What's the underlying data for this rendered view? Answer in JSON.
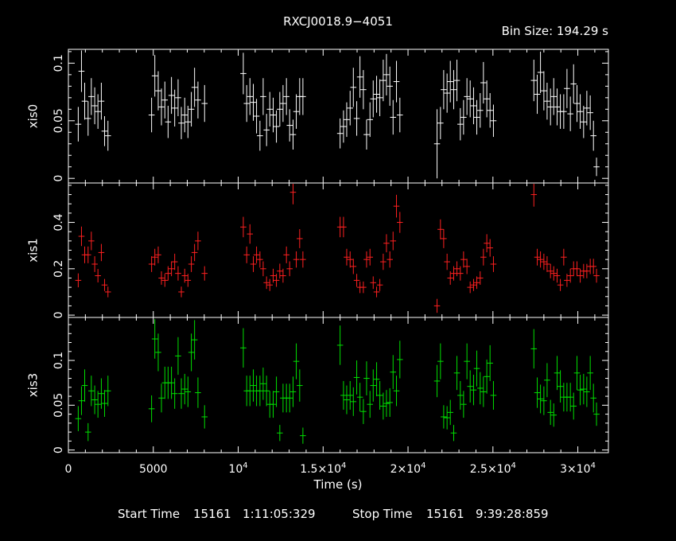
{
  "title": "RXCJ0018.9−4051",
  "bin_size": "Bin Size: 194.29 s",
  "xlabel": "Time (s)",
  "footer": {
    "start_label": "Start Time",
    "start_value": "15161   1:11:05:329",
    "stop_label": "Stop Time",
    "stop_value": "15161   9:39:28:859"
  },
  "colors": {
    "xis0": "#ffffff",
    "xis1": "#ff2020",
    "xis3": "#00e000",
    "frame": "#ffffff"
  },
  "chart_data": [
    {
      "type": "scatter",
      "panel": "xis0",
      "ylabel": "xis0",
      "xlim": [
        0,
        31800
      ],
      "ylim": [
        -0.004,
        0.112
      ],
      "yticks": [
        0,
        0.05,
        0.1
      ],
      "ytick_labels": [
        "0",
        "0.05",
        "0.1"
      ],
      "series": [
        {
          "color": "#ffffff",
          "x": [
            580,
            770,
            960,
            1160,
            1350,
            1550,
            1740,
            1940,
            2130,
            2330,
            4900,
            5090,
            5290,
            5480,
            5680,
            5870,
            6070,
            6260,
            6460,
            6650,
            6850,
            7040,
            7240,
            7430,
            7630,
            8020,
            10300,
            10500,
            10690,
            10890,
            11080,
            11280,
            11470,
            11670,
            11860,
            12060,
            12250,
            12450,
            12640,
            12840,
            13030,
            13230,
            13420,
            13620,
            13810,
            16000,
            16200,
            16390,
            16590,
            16780,
            16980,
            17170,
            17370,
            17560,
            17760,
            17950,
            18150,
            18340,
            18540,
            18730,
            18930,
            19120,
            19320,
            19520,
            21710,
            21910,
            22100,
            22300,
            22490,
            22690,
            22880,
            23080,
            23270,
            23470,
            23660,
            23860,
            24050,
            24250,
            24440,
            24640,
            24830,
            25030,
            27410,
            27610,
            27800,
            28000,
            28190,
            28390,
            28580,
            28780,
            28970,
            29170,
            29360,
            29560,
            29750,
            29950,
            30140,
            30340,
            30530,
            30730,
            30920,
            31100
          ],
          "y": [
            0.047,
            0.093,
            0.067,
            0.052,
            0.071,
            0.063,
            0.058,
            0.067,
            0.041,
            0.037,
            0.055,
            0.089,
            0.076,
            0.062,
            0.068,
            0.049,
            0.072,
            0.061,
            0.07,
            0.048,
            0.055,
            0.049,
            0.06,
            0.079,
            0.068,
            0.065,
            0.091,
            0.065,
            0.071,
            0.066,
            0.054,
            0.037,
            0.071,
            0.042,
            0.06,
            0.055,
            0.045,
            0.06,
            0.065,
            0.071,
            0.046,
            0.038,
            0.058,
            0.071,
            0.071,
            0.039,
            0.045,
            0.051,
            0.061,
            0.079,
            0.052,
            0.088,
            0.077,
            0.038,
            0.051,
            0.069,
            0.073,
            0.07,
            0.085,
            0.09,
            0.08,
            0.053,
            0.084,
            0.055,
            0.03,
            0.048,
            0.077,
            0.074,
            0.084,
            0.077,
            0.085,
            0.047,
            0.053,
            0.071,
            0.069,
            0.063,
            0.053,
            0.059,
            0.083,
            0.069,
            0.059,
            0.05,
            0.085,
            0.073,
            0.092,
            0.076,
            0.067,
            0.062,
            0.071,
            0.062,
            0.058,
            0.058,
            0.078,
            0.056,
            0.082,
            0.065,
            0.058,
            0.049,
            0.061,
            0.057,
            0.037,
            0.01
          ],
          "yerr": [
            0.015,
            0.018,
            0.016,
            0.015,
            0.016,
            0.016,
            0.015,
            0.016,
            0.013,
            0.013,
            0.015,
            0.018,
            0.017,
            0.016,
            0.016,
            0.014,
            0.016,
            0.016,
            0.016,
            0.014,
            0.015,
            0.014,
            0.015,
            0.017,
            0.016,
            0.016,
            0.018,
            0.016,
            0.016,
            0.016,
            0.015,
            0.013,
            0.016,
            0.014,
            0.015,
            0.015,
            0.014,
            0.015,
            0.016,
            0.016,
            0.014,
            0.013,
            0.015,
            0.016,
            0.016,
            0.013,
            0.014,
            0.015,
            0.015,
            0.017,
            0.015,
            0.018,
            0.017,
            0.013,
            0.015,
            0.016,
            0.016,
            0.016,
            0.018,
            0.018,
            0.017,
            0.015,
            0.018,
            0.015,
            0.03,
            0.014,
            0.017,
            0.017,
            0.018,
            0.017,
            0.018,
            0.014,
            0.015,
            0.016,
            0.016,
            0.016,
            0.015,
            0.015,
            0.018,
            0.016,
            0.015,
            0.014,
            0.018,
            0.017,
            0.018,
            0.017,
            0.016,
            0.016,
            0.016,
            0.016,
            0.015,
            0.015,
            0.017,
            0.015,
            0.017,
            0.016,
            0.015,
            0.014,
            0.015,
            0.015,
            0.013,
            0.008
          ]
        }
      ]
    },
    {
      "type": "scatter",
      "panel": "xis1",
      "ylabel": "xis1",
      "xlim": [
        0,
        31800
      ],
      "ylim": [
        -0.01,
        0.57
      ],
      "yticks": [
        0,
        0.2,
        0.4
      ],
      "ytick_labels": [
        "0",
        "0.2",
        "0.4"
      ],
      "series": [
        {
          "color": "#ff2020",
          "x": [
            580,
            770,
            960,
            1160,
            1350,
            1550,
            1740,
            1940,
            2130,
            2330,
            4900,
            5090,
            5290,
            5480,
            5680,
            5870,
            6070,
            6260,
            6460,
            6650,
            6850,
            7040,
            7240,
            7430,
            7630,
            8020,
            10300,
            10500,
            10690,
            10890,
            11080,
            11280,
            11470,
            11670,
            11860,
            12060,
            12250,
            12450,
            12640,
            12840,
            13030,
            13230,
            13420,
            13620,
            13810,
            16000,
            16200,
            16390,
            16590,
            16780,
            16980,
            17170,
            17370,
            17560,
            17760,
            17950,
            18150,
            18340,
            18540,
            18730,
            18930,
            19120,
            19320,
            19520,
            21710,
            21910,
            22100,
            22300,
            22490,
            22690,
            22880,
            23080,
            23270,
            23470,
            23660,
            23860,
            24050,
            24250,
            24440,
            24640,
            24830,
            25030,
            27410,
            27610,
            27800,
            28000,
            28190,
            28390,
            28580,
            28780,
            28970,
            29170,
            29360,
            29560,
            29750,
            29950,
            30140,
            30340,
            30530,
            30730,
            30920,
            31100
          ],
          "y": [
            0.15,
            0.34,
            0.26,
            0.26,
            0.32,
            0.22,
            0.17,
            0.27,
            0.13,
            0.1,
            0.22,
            0.25,
            0.26,
            0.16,
            0.15,
            0.18,
            0.2,
            0.23,
            0.18,
            0.1,
            0.17,
            0.15,
            0.22,
            0.27,
            0.32,
            0.18,
            0.38,
            0.26,
            0.35,
            0.22,
            0.26,
            0.24,
            0.2,
            0.14,
            0.13,
            0.17,
            0.15,
            0.19,
            0.17,
            0.26,
            0.2,
            0.53,
            0.24,
            0.33,
            0.24,
            0.38,
            0.38,
            0.25,
            0.24,
            0.21,
            0.15,
            0.12,
            0.12,
            0.24,
            0.25,
            0.14,
            0.1,
            0.13,
            0.23,
            0.31,
            0.24,
            0.32,
            0.47,
            0.4,
            0.04,
            0.37,
            0.33,
            0.23,
            0.16,
            0.18,
            0.2,
            0.18,
            0.24,
            0.21,
            0.12,
            0.13,
            0.14,
            0.16,
            0.25,
            0.31,
            0.29,
            0.22,
            0.52,
            0.25,
            0.24,
            0.23,
            0.22,
            0.19,
            0.18,
            0.17,
            0.13,
            0.25,
            0.15,
            0.17,
            0.2,
            0.2,
            0.17,
            0.19,
            0.19,
            0.21,
            0.21,
            0.17
          ],
          "yerr": [
            0.03,
            0.042,
            0.036,
            0.036,
            0.04,
            0.034,
            0.029,
            0.037,
            0.026,
            0.023,
            0.034,
            0.036,
            0.036,
            0.029,
            0.028,
            0.031,
            0.032,
            0.035,
            0.031,
            0.023,
            0.03,
            0.028,
            0.034,
            0.037,
            0.04,
            0.031,
            0.044,
            0.036,
            0.042,
            0.034,
            0.036,
            0.035,
            0.032,
            0.027,
            0.026,
            0.03,
            0.028,
            0.032,
            0.03,
            0.036,
            0.032,
            0.052,
            0.035,
            0.041,
            0.035,
            0.044,
            0.044,
            0.036,
            0.035,
            0.033,
            0.028,
            0.025,
            0.025,
            0.035,
            0.036,
            0.027,
            0.023,
            0.026,
            0.035,
            0.039,
            0.035,
            0.04,
            0.049,
            0.045,
            0.03,
            0.043,
            0.041,
            0.035,
            0.029,
            0.031,
            0.032,
            0.031,
            0.035,
            0.033,
            0.025,
            0.026,
            0.027,
            0.029,
            0.036,
            0.039,
            0.038,
            0.034,
            0.052,
            0.036,
            0.035,
            0.035,
            0.034,
            0.031,
            0.031,
            0.03,
            0.026,
            0.036,
            0.028,
            0.03,
            0.032,
            0.032,
            0.03,
            0.031,
            0.031,
            0.033,
            0.033,
            0.03
          ]
        }
      ]
    },
    {
      "type": "scatter",
      "panel": "xis3",
      "ylabel": "xis3",
      "xlim": [
        0,
        31800
      ],
      "ylim": [
        -0.003,
        0.148
      ],
      "yticks": [
        0,
        0.05,
        0.1
      ],
      "ytick_labels": [
        "0",
        "0.05",
        "0.1"
      ],
      "series": [
        {
          "color": "#00e000",
          "x": [
            580,
            770,
            960,
            1160,
            1350,
            1550,
            1740,
            1940,
            2130,
            2330,
            4900,
            5090,
            5290,
            5480,
            5680,
            5870,
            6070,
            6260,
            6460,
            6650,
            6850,
            7040,
            7240,
            7430,
            7630,
            8020,
            10300,
            10500,
            10690,
            10890,
            11080,
            11280,
            11470,
            11670,
            11860,
            12060,
            12250,
            12450,
            12640,
            12840,
            13030,
            13230,
            13420,
            13620,
            13810,
            16000,
            16200,
            16390,
            16590,
            16780,
            16980,
            17170,
            17370,
            17560,
            17760,
            17950,
            18150,
            18340,
            18540,
            18730,
            18930,
            19120,
            19320,
            19520,
            21710,
            21910,
            22100,
            22300,
            22490,
            22690,
            22880,
            23080,
            23270,
            23470,
            23660,
            23860,
            24050,
            24250,
            24440,
            24640,
            24830,
            25030,
            27410,
            27610,
            27800,
            28000,
            28190,
            28390,
            28580,
            28780,
            28970,
            29170,
            29360,
            29560,
            29750,
            29950,
            30140,
            30340,
            30530,
            30730,
            30920,
            31100
          ],
          "y": [
            0.035,
            0.055,
            0.072,
            0.02,
            0.066,
            0.056,
            0.051,
            0.063,
            0.052,
            0.066,
            0.046,
            0.124,
            0.109,
            0.058,
            0.075,
            0.075,
            0.075,
            0.063,
            0.105,
            0.063,
            0.068,
            0.065,
            0.109,
            0.123,
            0.064,
            0.037,
            0.114,
            0.066,
            0.066,
            0.072,
            0.066,
            0.066,
            0.074,
            0.066,
            0.051,
            0.051,
            0.065,
            0.019,
            0.058,
            0.058,
            0.058,
            0.065,
            0.099,
            0.072,
            0.016,
            0.117,
            0.061,
            0.056,
            0.061,
            0.054,
            0.081,
            0.059,
            0.043,
            0.08,
            0.051,
            0.072,
            0.079,
            0.061,
            0.049,
            0.052,
            0.053,
            0.087,
            0.066,
            0.101,
            0.077,
            0.099,
            0.037,
            0.036,
            0.042,
            0.019,
            0.086,
            0.061,
            0.051,
            0.099,
            0.071,
            0.067,
            0.091,
            0.069,
            0.065,
            0.082,
            0.097,
            0.061,
            0.113,
            0.064,
            0.057,
            0.055,
            0.078,
            0.042,
            0.039,
            0.086,
            0.071,
            0.059,
            0.059,
            0.059,
            0.049,
            0.086,
            0.067,
            0.068,
            0.065,
            0.086,
            0.058,
            0.04
          ],
          "yerr": [
            0.014,
            0.016,
            0.018,
            0.01,
            0.017,
            0.016,
            0.015,
            0.017,
            0.015,
            0.017,
            0.015,
            0.022,
            0.021,
            0.016,
            0.018,
            0.018,
            0.018,
            0.017,
            0.021,
            0.017,
            0.017,
            0.017,
            0.021,
            0.022,
            0.017,
            0.013,
            0.022,
            0.017,
            0.017,
            0.018,
            0.017,
            0.017,
            0.018,
            0.017,
            0.015,
            0.015,
            0.017,
            0.009,
            0.016,
            0.016,
            0.016,
            0.017,
            0.02,
            0.018,
            0.009,
            0.022,
            0.016,
            0.016,
            0.016,
            0.016,
            0.019,
            0.016,
            0.014,
            0.019,
            0.015,
            0.018,
            0.019,
            0.016,
            0.015,
            0.015,
            0.016,
            0.019,
            0.017,
            0.021,
            0.018,
            0.02,
            0.013,
            0.013,
            0.014,
            0.009,
            0.019,
            0.016,
            0.015,
            0.02,
            0.018,
            0.017,
            0.02,
            0.018,
            0.017,
            0.019,
            0.02,
            0.016,
            0.022,
            0.017,
            0.016,
            0.016,
            0.019,
            0.014,
            0.013,
            0.019,
            0.018,
            0.016,
            0.016,
            0.016,
            0.015,
            0.019,
            0.017,
            0.017,
            0.017,
            0.019,
            0.016,
            0.013
          ]
        }
      ]
    }
  ],
  "x_axis": {
    "ticks": [
      0,
      5000,
      10000,
      15000,
      20000,
      25000,
      30000
    ],
    "tick_labels": [
      {
        "mantissa": "0",
        "exponent": ""
      },
      {
        "mantissa": "5000",
        "exponent": ""
      },
      {
        "mantissa": "10",
        "exponent": "4"
      },
      {
        "mantissa": "1.5×10",
        "exponent": "4"
      },
      {
        "mantissa": "2×10",
        "exponent": "4"
      },
      {
        "mantissa": "2.5×10",
        "exponent": "4"
      },
      {
        "mantissa": "3×10",
        "exponent": "4"
      }
    ],
    "minor_step": 1000
  }
}
